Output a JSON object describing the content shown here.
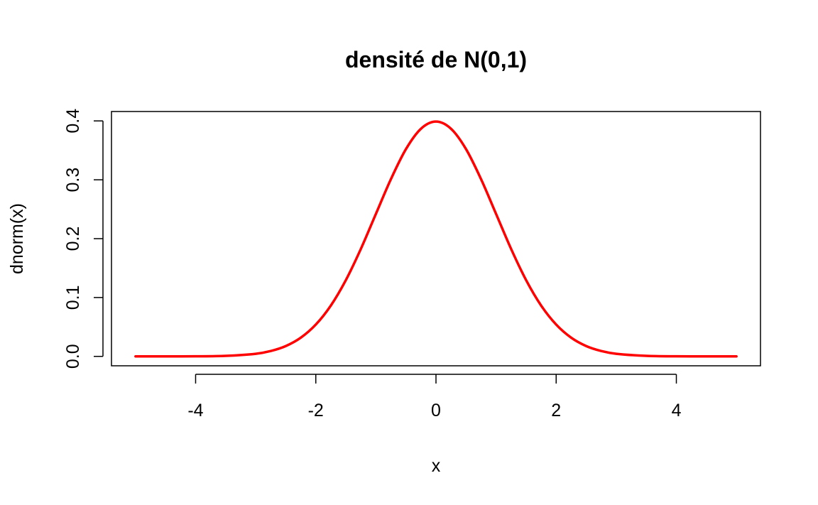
{
  "chart_data": {
    "type": "line",
    "title": "densité de N(0,1)",
    "xlabel": "x",
    "ylabel": "dnorm(x)",
    "xlim": [
      -5.4,
      5.4
    ],
    "ylim": [
      -0.016,
      0.416
    ],
    "x_ticks": [
      -4,
      -2,
      0,
      2,
      4
    ],
    "x_tick_labels": [
      "-4",
      "-2",
      "0",
      "2",
      "4"
    ],
    "y_ticks": [
      0.0,
      0.1,
      0.2,
      0.3,
      0.4
    ],
    "y_tick_labels": [
      "0.0",
      "0.1",
      "0.2",
      "0.3",
      "0.4"
    ],
    "grid": false,
    "legend": "none",
    "series": [
      {
        "color": "#ff0000",
        "x": [
          -5,
          -4.5,
          -4,
          -3.5,
          -3,
          -2.75,
          -2.5,
          -2.25,
          -2,
          -1.75,
          -1.5,
          -1.25,
          -1,
          -0.75,
          -0.5,
          -0.25,
          0,
          0.25,
          0.5,
          0.75,
          1,
          1.25,
          1.5,
          1.75,
          2,
          2.25,
          2.5,
          2.75,
          3,
          3.5,
          4,
          4.5,
          5
        ],
        "y": [
          0.0,
          0.0,
          0.0001,
          0.0009,
          0.0044,
          0.0091,
          0.0175,
          0.0317,
          0.054,
          0.0863,
          0.1295,
          0.1826,
          0.242,
          0.3011,
          0.3521,
          0.3867,
          0.3989,
          0.3867,
          0.3521,
          0.3011,
          0.242,
          0.1826,
          0.1295,
          0.0863,
          0.054,
          0.0317,
          0.0175,
          0.0091,
          0.0044,
          0.0009,
          0.0001,
          0.0,
          0.0
        ]
      }
    ]
  }
}
